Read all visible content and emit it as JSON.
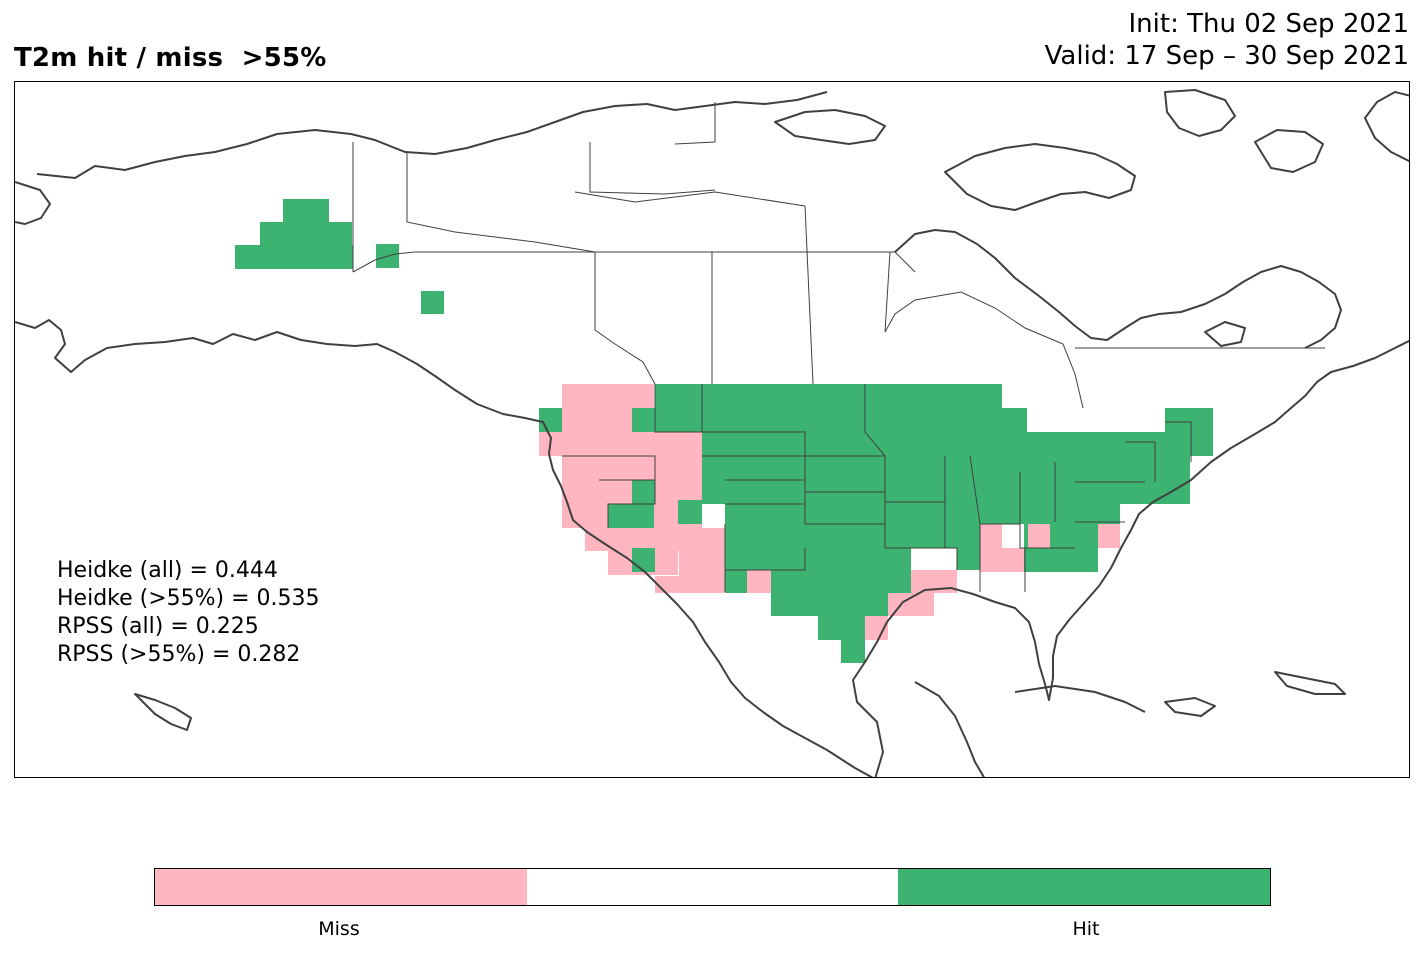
{
  "title": "T2m hit / miss  >55%",
  "init_text": "Init: Thu 02 Sep 2021",
  "valid_text": "Valid: 17 Sep – 30 Sep 2021",
  "stats": [
    "Heidke (all) = 0.444",
    "Heidke (>55%) = 0.535",
    "RPSS (all) = 0.225",
    "RPSS (>55%) = 0.282"
  ],
  "colorbar": {
    "colors": [
      "#ffb6c1",
      "#ffffff",
      "#3cb371"
    ],
    "labels": [
      "Miss",
      "Hit"
    ]
  },
  "map": {
    "coastline_color": "#404040",
    "hit_color": "#3cb371",
    "miss_color": "#ffb6c1"
  }
}
